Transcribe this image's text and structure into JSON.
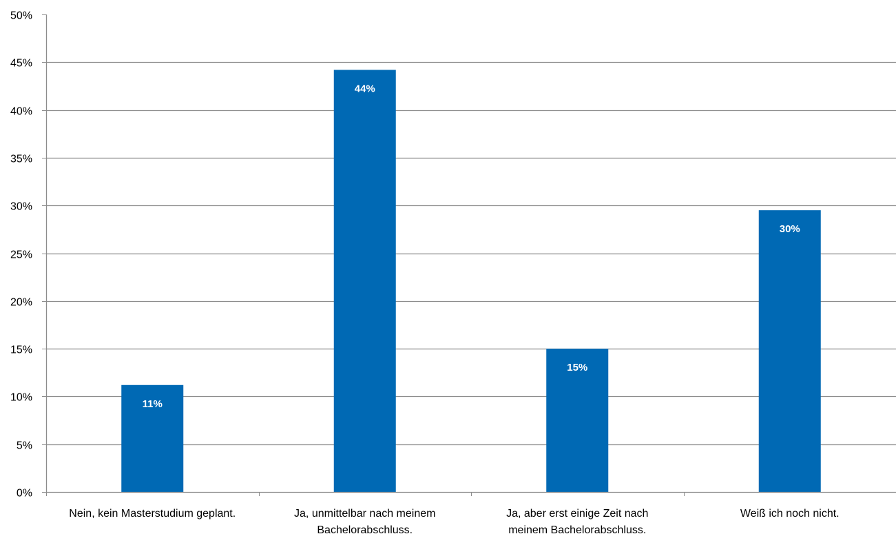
{
  "chart_data": {
    "type": "bar",
    "categories": [
      [
        "Nein, kein Masterstudium geplant."
      ],
      [
        "Ja, unmittelbar nach meinem",
        "Bachelorabschluss."
      ],
      [
        "Ja, aber erst einige Zeit nach",
        "meinem Bachelorabschluss."
      ],
      [
        "Weiß ich noch nicht."
      ]
    ],
    "values": [
      11.2,
      44.2,
      15.0,
      29.5
    ],
    "data_labels": [
      "11%",
      "44%",
      "15%",
      "30%"
    ],
    "ylim": [
      0,
      50
    ],
    "yticks": [
      0,
      5,
      10,
      15,
      20,
      25,
      30,
      35,
      40,
      45,
      50
    ],
    "ytick_labels": [
      "0%",
      "5%",
      "10%",
      "15%",
      "20%",
      "25%",
      "30%",
      "35%",
      "40%",
      "45%",
      "50%"
    ],
    "title": "",
    "xlabel": "",
    "ylabel": "",
    "grid": true,
    "legend": "none",
    "colors": {
      "bar": "#0069B4",
      "grid": "#8C8C8C",
      "axis": "#8C8C8C",
      "data_label": "#FFFFFF"
    }
  }
}
